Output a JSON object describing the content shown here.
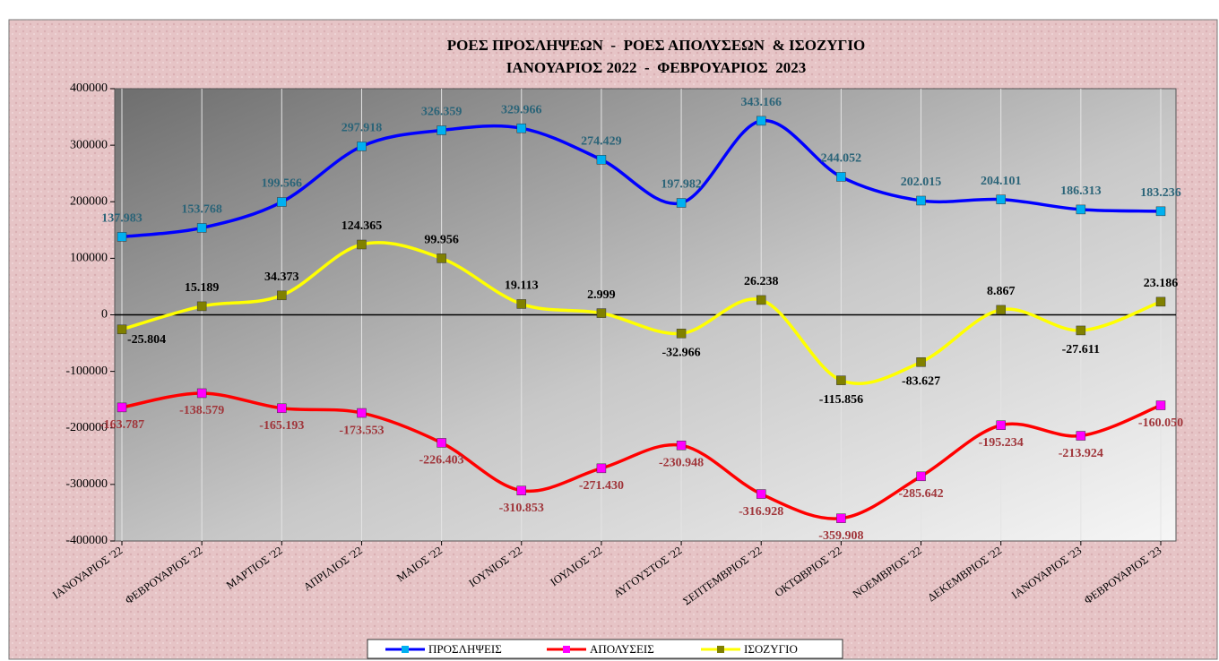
{
  "chart_data": {
    "type": "line",
    "title": "ΡΟΕΣ ΠΡΟΣΛΗΨΕΩΝ  -  ΡΟΕΣ ΑΠΟΛΥΣΕΩΝ  & ΙΣΟΖΥΓΙΟ",
    "subtitle": "ΙΑΝΟΥΑΡΙΟΣ 2022  -  ΦΕΒΡΟΥΑΡΙΟΣ  2023",
    "categories": [
      "ΙΑΝΟΥΑΡΙΟΣ '22",
      "ΦΕΒΡΟΥΑΡΙΟΣ '22",
      "ΜΑΡΤΙΟΣ '22",
      "ΑΠΡΙΛΙΟΣ '22",
      "ΜΑΙΟΣ '22",
      "ΙΟΥΝΙΟΣ '22",
      "ΙΟΥΛΙΟΣ '22",
      "ΑΥΓΟΥΣΤΟΣ '22",
      "ΣΕΠΤΕΜΒΡΙΟΣ '22",
      "ΟΚΤΩΒΡΙΟΣ '22",
      "ΝΟΕΜΒΡΙΟΣ '22",
      "ΔΕΚΕΜΒΡΙΟΣ '22",
      "ΙΑΝΟΥΑΡΙΟΣ '23",
      "ΦΕΒΡΟΥΑΡΙΟΣ '23"
    ],
    "series": [
      {
        "name": "ΠΡΟΣΛΗΨΕΙΣ",
        "color": "#0000ff",
        "marker_color": "#00b0f0",
        "label_color": "#2b6478",
        "values": [
          137983,
          153768,
          199566,
          297918,
          326359,
          329966,
          274429,
          197982,
          343166,
          244052,
          202015,
          204101,
          186313,
          183236
        ],
        "value_labels": [
          "137.983",
          "153.768",
          "199.566",
          "297.918",
          "326.359",
          "329.966",
          "274.429",
          "197.982",
          "343.166",
          "244.052",
          "202.015",
          "204.101",
          "186.313",
          "183.236"
        ]
      },
      {
        "name": "ΑΠΟΛΥΣΕΙΣ",
        "color": "#ff0000",
        "marker_color": "#ff00ff",
        "label_color": "#a0353a",
        "values": [
          -163787,
          -138579,
          -165193,
          -173553,
          -226403,
          -310853,
          -271430,
          -230948,
          -316928,
          -359908,
          -285642,
          -195234,
          -213924,
          -160050
        ],
        "value_labels": [
          "-163.787",
          "-138.579",
          "-165.193",
          "-173.553",
          "-226.403",
          "-310.853",
          "-271.430",
          "-230.948",
          "-316.928",
          "-359.908",
          "-285.642",
          "-195.234",
          "-213.924",
          "-160.050"
        ]
      },
      {
        "name": "ΙΣΟΖΥΓΙΟ",
        "color": "#ffff00",
        "marker_color": "#808000",
        "label_color": "#000000",
        "values": [
          -25804,
          15189,
          34373,
          124365,
          99956,
          19113,
          2999,
          -32966,
          26238,
          -115856,
          -83627,
          8867,
          -27611,
          23186
        ],
        "value_labels": [
          "-25.804",
          "15.189",
          "34.373",
          "124.365",
          "99.956",
          "19.113",
          "2.999",
          "-32.966",
          "26.238",
          "-115.856",
          "-83.627",
          "8.867",
          "-27.611",
          "23.186"
        ]
      }
    ],
    "ylim": [
      -400000,
      400000
    ],
    "yticks": [
      -400000,
      -300000,
      -200000,
      -100000,
      0,
      100000,
      200000,
      300000,
      400000
    ],
    "grid": true,
    "legend": "bottom"
  }
}
